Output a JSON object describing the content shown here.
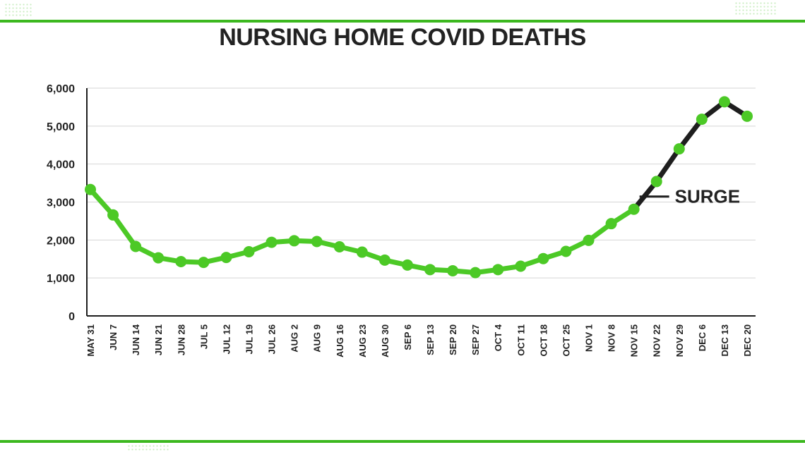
{
  "chart_data": {
    "type": "line",
    "title": "NURSING HOME COVID DEATHS",
    "xlabel": "",
    "ylabel": "",
    "categories": [
      "MAY 31",
      "JUN 7",
      "JUN 14",
      "JUN 21",
      "JUN 28",
      "JUL 5",
      "JUL 12",
      "JUL 19",
      "JUL 26",
      "AUG 2",
      "AUG 9",
      "AUG 16",
      "AUG 23",
      "AUG 30",
      "SEP 6",
      "SEP 13",
      "SEP 20",
      "SEP 27",
      "OCT 4",
      "OCT 11",
      "OCT 18",
      "OCT 25",
      "NOV 1",
      "NOV 8",
      "NOV 15",
      "NOV 22",
      "NOV 29",
      "DEC 6",
      "DEC 13",
      "DEC 20"
    ],
    "values": [
      3330,
      2660,
      1830,
      1530,
      1430,
      1410,
      1540,
      1690,
      1940,
      1980,
      1960,
      1820,
      1680,
      1470,
      1340,
      1220,
      1190,
      1140,
      1220,
      1310,
      1510,
      1700,
      1990,
      2430,
      2810,
      3540,
      4400,
      5180,
      5640,
      5260
    ],
    "ylim": [
      0,
      6000
    ],
    "yticks": [
      0,
      1000,
      2000,
      3000,
      4000,
      5000,
      6000
    ],
    "ytick_labels": [
      "0",
      "1,000",
      "2,000",
      "3,000",
      "4,000",
      "5,000",
      "6,000"
    ],
    "grid": true,
    "colors": {
      "line": "#4cc926",
      "marker": "#4cc926",
      "surge_line": "#1e1e1e",
      "grid": "#d4d4d4"
    },
    "surge_start_index": 24,
    "annotation": {
      "text": "SURGE",
      "index": 24
    }
  }
}
